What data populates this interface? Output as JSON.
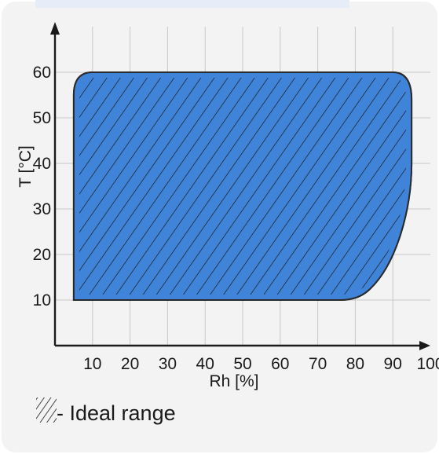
{
  "chart_data": {
    "type": "area",
    "title": "",
    "xlabel": "Rh [%]",
    "ylabel": "T [°C]",
    "xlim": [
      0,
      100
    ],
    "ylim": [
      0,
      65
    ],
    "x_ticks": [
      10,
      20,
      30,
      40,
      50,
      60,
      70,
      80,
      90,
      100
    ],
    "y_ticks": [
      10,
      20,
      30,
      40,
      50,
      60
    ],
    "grid": true,
    "series": [
      {
        "name": "Ideal range",
        "region": [
          [
            5,
            10
          ],
          [
            5,
            55
          ],
          [
            6,
            59
          ],
          [
            10,
            60
          ],
          [
            90,
            60
          ],
          [
            94,
            58
          ],
          [
            95,
            52
          ],
          [
            95,
            40
          ],
          [
            94,
            30
          ],
          [
            90,
            20
          ],
          [
            84,
            13
          ],
          [
            78,
            10
          ]
        ]
      }
    ],
    "legend": {
      "label": "- Ideal range",
      "placement": "bottom-left"
    },
    "colors": {
      "fill": "#3f84d8",
      "hatch": "#1a1a1a",
      "outline": "#2a2a2a",
      "background": "#f3f3f3",
      "grid": "#c8c8c8",
      "axis": "#1a1a1a"
    }
  }
}
